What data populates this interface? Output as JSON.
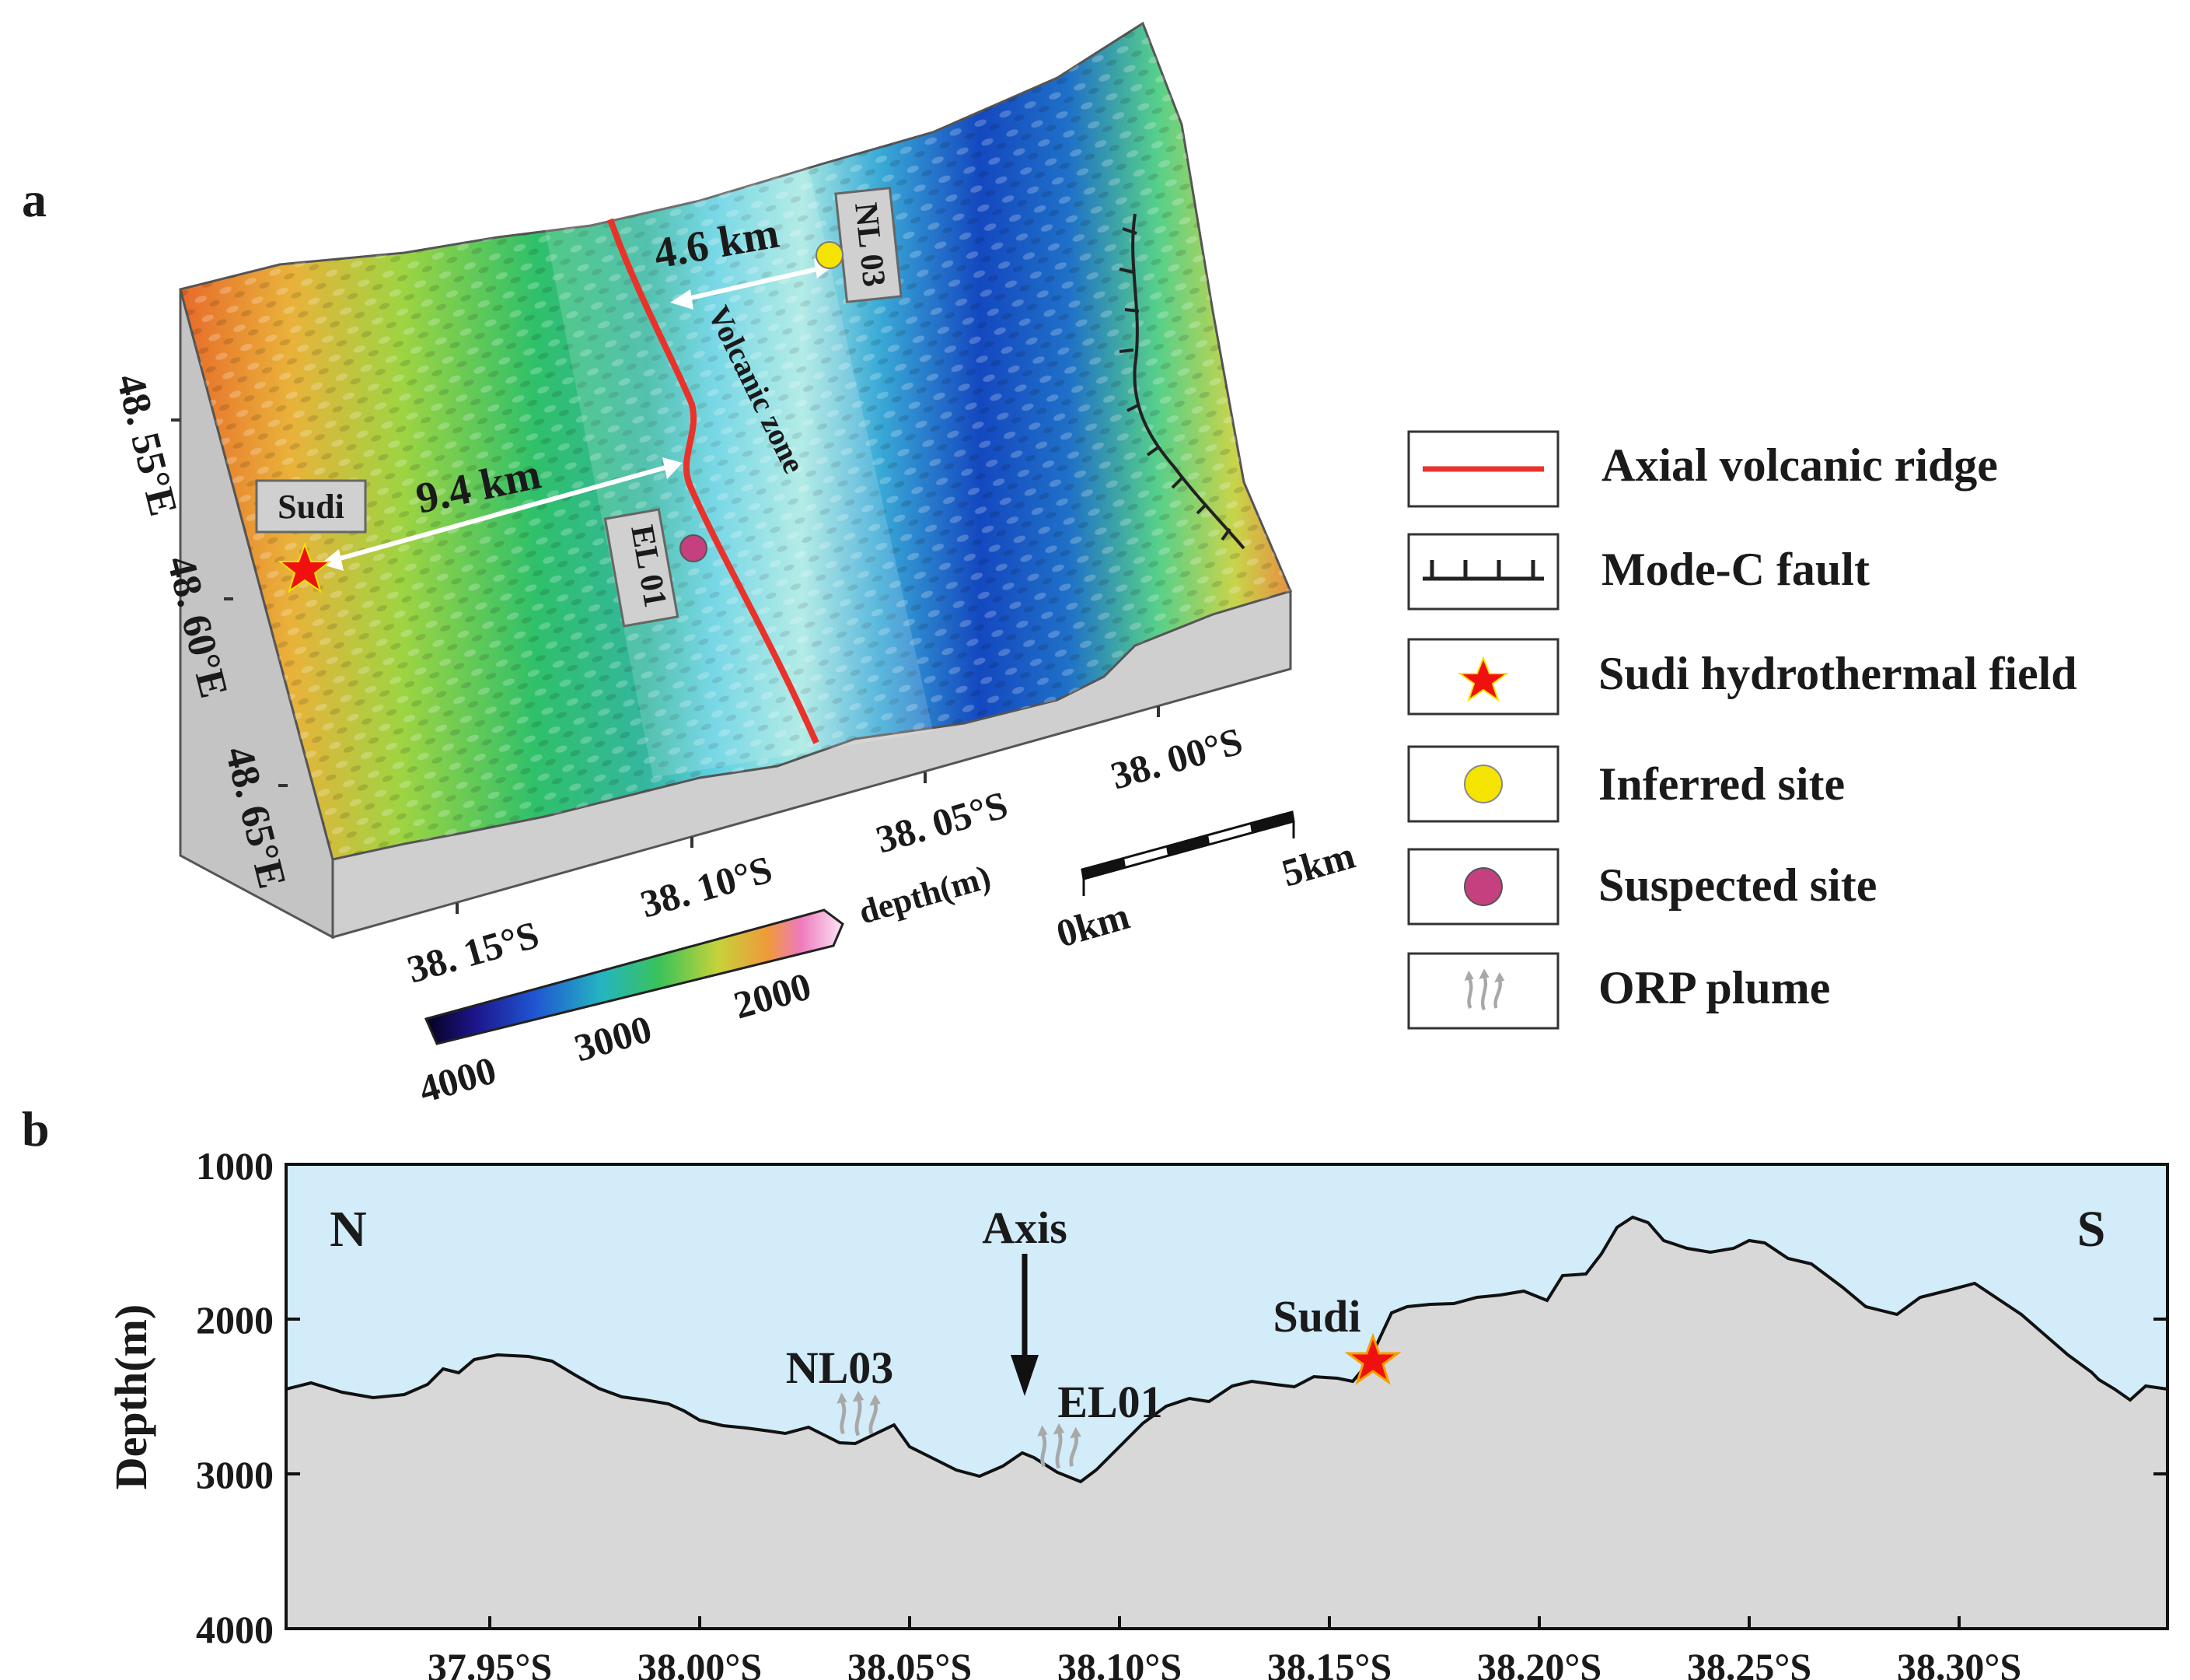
{
  "panel_a": {
    "label": "a",
    "distances": {
      "upper": "4.6 km",
      "lower": "9.4 km"
    },
    "zone_label": "Volcanic zone",
    "sites": {
      "sudi": "Sudi",
      "nl": "NL 03",
      "el": "EL 01"
    },
    "lon_ticks": [
      "48. 55°E",
      "48. 60°E",
      "48. 65°E"
    ],
    "lat_ticks": [
      "38. 15°S",
      "38. 10°S",
      "38. 05°S",
      "38. 00°S"
    ],
    "colorbar": {
      "title": "depth(m)",
      "ticks": [
        "4000",
        "3000",
        "2000"
      ]
    },
    "scale_bar": {
      "start": "0km",
      "end": "5km"
    }
  },
  "legend": {
    "items": [
      {
        "symbol": "red-line",
        "label": "Axial volcanic ridge"
      },
      {
        "symbol": "fault",
        "label": "Mode-C fault"
      },
      {
        "symbol": "red-star",
        "label": "Sudi hydrothermal field"
      },
      {
        "symbol": "yellow-circle",
        "label": "Inferred site"
      },
      {
        "symbol": "purple-circle",
        "label": "Suspected site"
      },
      {
        "symbol": "plume",
        "label": "ORP plume"
      }
    ]
  },
  "panel_b": {
    "label": "b",
    "north": "N",
    "south": "S",
    "axis_label": "Axis",
    "ylabel": "Depth(m)",
    "y_ticks": [
      "1000",
      "2000",
      "3000",
      "4000"
    ],
    "x_ticks": [
      "37.95°S",
      "38.00°S",
      "38.05°S",
      "38.10°S",
      "38.15°S",
      "38.20°S",
      "38.25°S",
      "38.30°S"
    ],
    "sites": {
      "nl": "NL03",
      "el": "EL01",
      "sudi": "Sudi"
    }
  },
  "colors": {
    "axial_ridge": "#e8322a",
    "sudi_star": "#f01010",
    "inferred_site": "#f5e400",
    "suspected_site": "#c4407f",
    "water": "#d2ecfa",
    "seafloor": "#d8d8d8"
  }
}
